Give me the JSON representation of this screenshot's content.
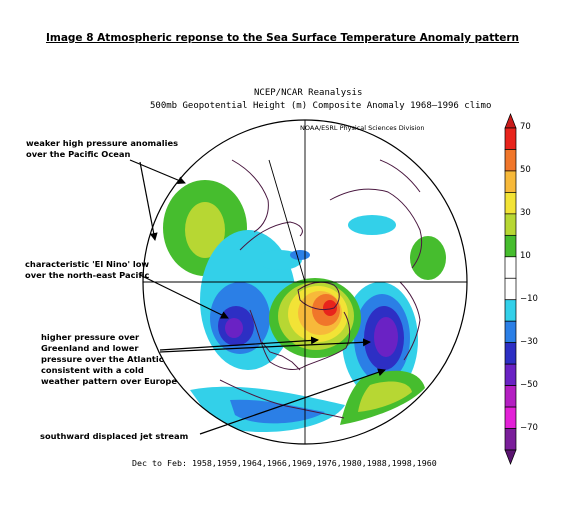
{
  "page_title": "Image 8 Atmospheric reponse to the Sea Surface Temperature Anomaly pattern",
  "map": {
    "title_line1": "NCEP/NCAR Reanalysis",
    "title_line2": "500mb Geopotential Height (m) Composite Anomaly 1968–1996 climo",
    "credit": "NOAA/ESRL Physical Sciences Division",
    "footer": "Dec to Feb: 1958,1959,1964,1966,1969,1976,1980,1988,1998,1960",
    "projection": "north polar stereographic"
  },
  "annotations": [
    {
      "lines": [
        "weaker high pressure anomalies",
        "over the Pacific Ocean"
      ]
    },
    {
      "lines": [
        "characteristic 'El Nino' low",
        "over the north-east Pacific"
      ]
    },
    {
      "lines": [
        "higher pressure over",
        "Greenland and lower",
        "pressure over the Atlantic",
        "consistent with a cold",
        "weather pattern over Europe"
      ]
    },
    {
      "lines": [
        "southward displaced jet stream"
      ]
    }
  ],
  "colorbar": {
    "labels": [
      "70",
      "50",
      "30",
      "10",
      "−10",
      "−30",
      "−50",
      "−70"
    ],
    "colors": [
      "#e8241c",
      "#f0762a",
      "#f7b93a",
      "#f2e336",
      "#b7d733",
      "#46bd2e",
      "#ffffff",
      "#ffffff",
      "#33d0e9",
      "#2b7fe6",
      "#2d2fc4",
      "#6a22c4",
      "#b41fc2",
      "#e321d7",
      "#7a1e9a"
    ]
  }
}
